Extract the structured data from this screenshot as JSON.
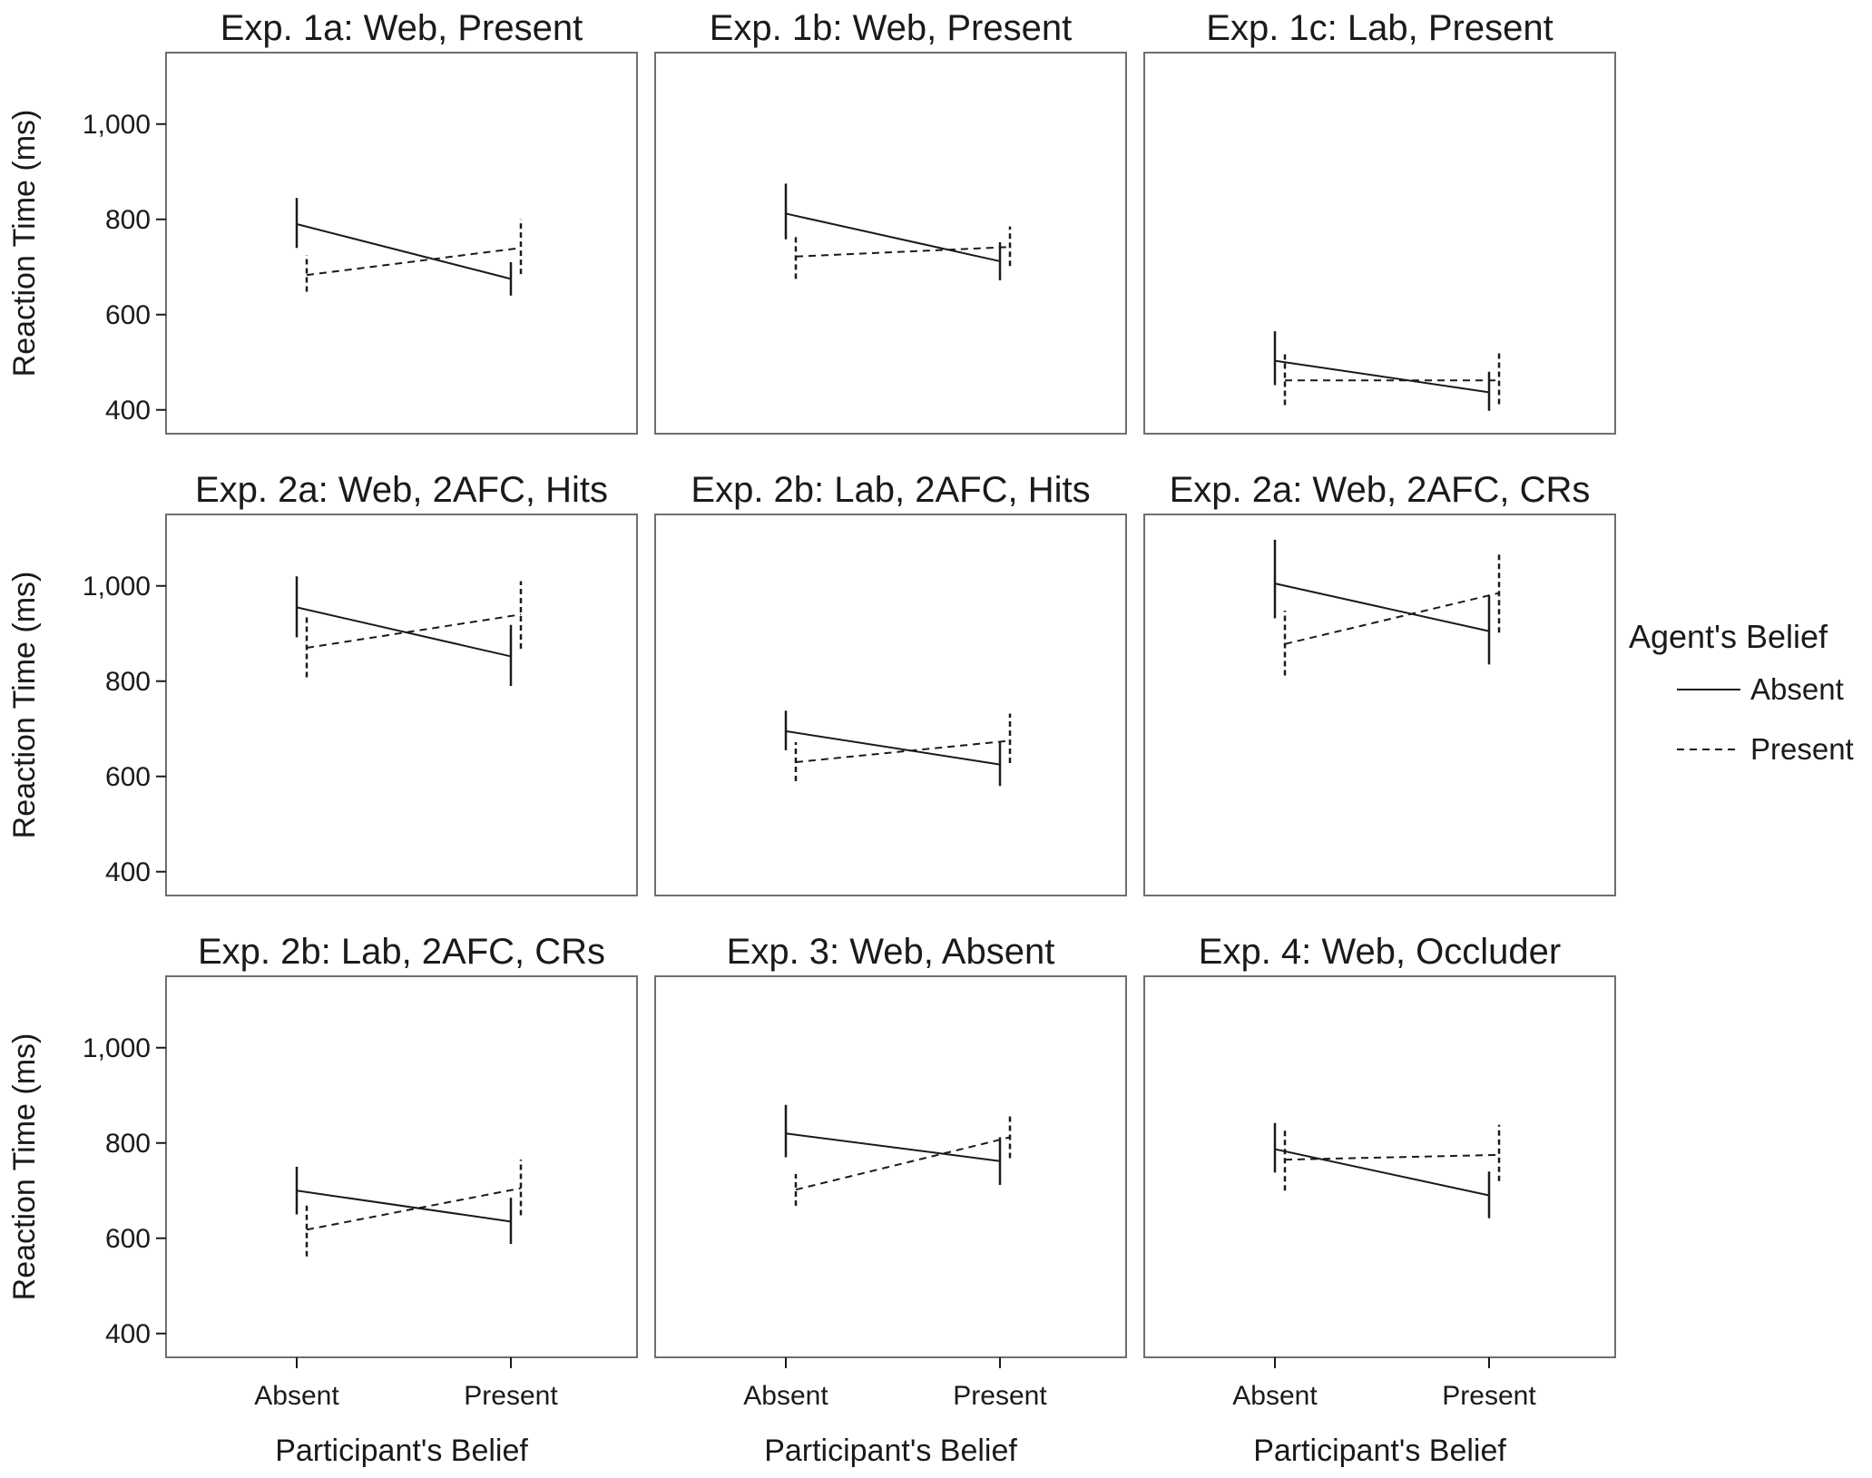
{
  "chart_data": {
    "type": "line",
    "layout": "3x3 panel grid",
    "ylabel": "Reaction Time (ms)",
    "xlabel": "Participant's Belief",
    "categories": [
      "Absent",
      "Present"
    ],
    "ylim": [
      350,
      1150
    ],
    "yticks": [
      400,
      600,
      800,
      1000
    ],
    "ytick_labels": [
      "400",
      "600",
      "800",
      "1,000"
    ],
    "legend": {
      "title": "Agent's Belief",
      "position": "right",
      "items": [
        {
          "name": "Absent",
          "style": "solid"
        },
        {
          "name": "Present",
          "style": "dashed"
        }
      ]
    },
    "panels": [
      {
        "title": "Exp. 1a: Web, Present",
        "series": [
          {
            "name": "Absent",
            "values": [
              790,
              675
            ],
            "err_low": [
              740,
              640
            ],
            "err_high": [
              845,
              710
            ]
          },
          {
            "name": "Present",
            "values": [
              683,
              740
            ],
            "err_low": [
              648,
              685
            ],
            "err_high": [
              725,
              800
            ]
          }
        ]
      },
      {
        "title": "Exp. 1b: Web, Present",
        "series": [
          {
            "name": "Absent",
            "values": [
              812,
              712
            ],
            "err_low": [
              758,
              672
            ],
            "err_high": [
              875,
              752
            ]
          },
          {
            "name": "Present",
            "values": [
              722,
              742
            ],
            "err_low": [
              675,
              702
            ],
            "err_high": [
              765,
              785
            ]
          }
        ]
      },
      {
        "title": "Exp. 1c: Lab, Present",
        "series": [
          {
            "name": "Absent",
            "values": [
              503,
              437
            ],
            "err_low": [
              452,
              398
            ],
            "err_high": [
              565,
              480
            ]
          },
          {
            "name": "Present",
            "values": [
              462,
              462
            ],
            "err_low": [
              410,
              412
            ],
            "err_high": [
              520,
              522
            ]
          }
        ]
      },
      {
        "title": "Exp. 2a: Web, 2AFC, Hits",
        "series": [
          {
            "name": "Absent",
            "values": [
              955,
              852
            ],
            "err_low": [
              892,
              790
            ],
            "err_high": [
              1020,
              918
            ]
          },
          {
            "name": "Present",
            "values": [
              870,
              940
            ],
            "err_low": [
              808,
              868
            ],
            "err_high": [
              935,
              1010
            ]
          }
        ]
      },
      {
        "title": "Exp. 2b: Lab, 2AFC, Hits",
        "series": [
          {
            "name": "Absent",
            "values": [
              695,
              625
            ],
            "err_low": [
              655,
              580
            ],
            "err_high": [
              738,
              672
            ]
          },
          {
            "name": "Present",
            "values": [
              630,
              675
            ],
            "err_low": [
              590,
              628
            ],
            "err_high": [
              672,
              732
            ]
          }
        ]
      },
      {
        "title": "Exp. 2a: Web, 2AFC, CRs",
        "series": [
          {
            "name": "Absent",
            "values": [
              1005,
              905
            ],
            "err_low": [
              932,
              835
            ],
            "err_high": [
              1097,
              980
            ]
          },
          {
            "name": "Present",
            "values": [
              878,
              985
            ],
            "err_low": [
              812,
              902
            ],
            "err_high": [
              948,
              1072
            ]
          }
        ]
      },
      {
        "title": "Exp. 2b: Lab, 2AFC, CRs",
        "series": [
          {
            "name": "Absent",
            "values": [
              700,
              635
            ],
            "err_low": [
              650,
              588
            ],
            "err_high": [
              750,
              685
            ]
          },
          {
            "name": "Present",
            "values": [
              618,
              705
            ],
            "err_low": [
              562,
              648
            ],
            "err_high": [
              675,
              765
            ]
          }
        ]
      },
      {
        "title": "Exp. 3: Web, Absent",
        "series": [
          {
            "name": "Absent",
            "values": [
              820,
              762
            ],
            "err_low": [
              770,
              712
            ],
            "err_high": [
              880,
              812
            ]
          },
          {
            "name": "Present",
            "values": [
              702,
              812
            ],
            "err_low": [
              668,
              768
            ],
            "err_high": [
              735,
              858
            ]
          }
        ]
      },
      {
        "title": "Exp. 4: Web, Occluder",
        "series": [
          {
            "name": "Absent",
            "values": [
              787,
              690
            ],
            "err_low": [
              738,
              642
            ],
            "err_high": [
              842,
              740
            ]
          },
          {
            "name": "Present",
            "values": [
              765,
              775
            ],
            "err_low": [
              700,
              720
            ],
            "err_high": [
              828,
              838
            ]
          }
        ]
      }
    ]
  }
}
